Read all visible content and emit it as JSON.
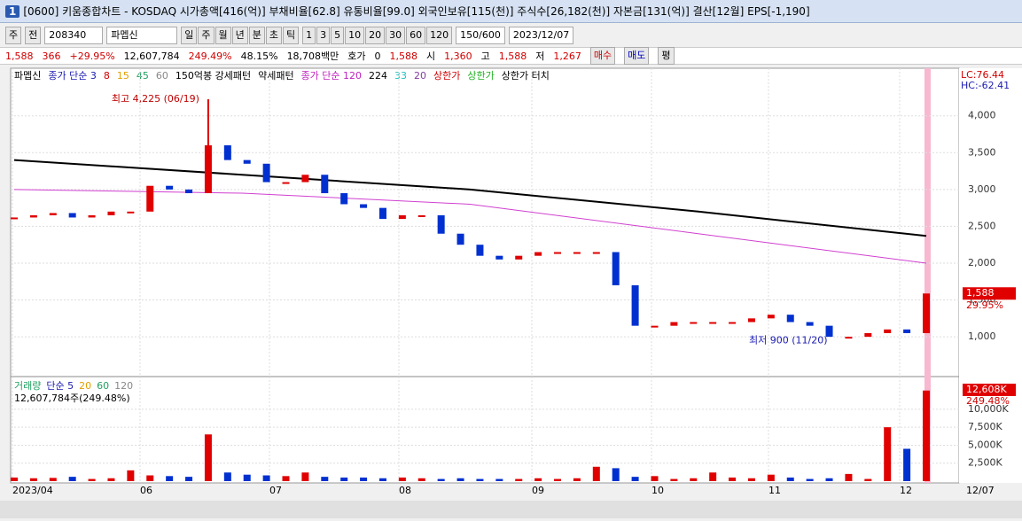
{
  "window": {
    "badge": "1",
    "title": "[0600] 키움종합차트 - KOSDAQ 시가총액[416(억)] 부채비율[62.8] 유통비율[99.0] 외국인보유[115(천)] 주식수[26,182(천)] 자본금[131(억)] 결산[12월] EPS[-1,190]"
  },
  "toolbar": {
    "period": "주",
    "mode": "전",
    "code": "208340",
    "name": "파멥신",
    "tabs": [
      "일",
      "주",
      "월",
      "년",
      "분",
      "초",
      "틱"
    ],
    "numbers": [
      "1",
      "3",
      "5",
      "10",
      "20",
      "30",
      "60",
      "120"
    ],
    "count": "150/600",
    "date": "2023/12/07"
  },
  "quote": {
    "price": "1,588",
    "change": "366",
    "change_pct": "+29.95%",
    "volume": "12,607,784",
    "volume_pct": "249.49%",
    "turnover": "48.15%",
    "amount": "18,708백만",
    "hoga_label": "호가",
    "hoga": "0",
    "hoga_price": "1,588",
    "open_label": "시",
    "open": "1,360",
    "high_label": "고",
    "high": "1,588",
    "low_label": "저",
    "low": "1,267",
    "buy": "매수",
    "sell": "매도",
    "avg": "평"
  },
  "price_chart": {
    "legend": [
      {
        "text": "파멥신",
        "color": "#000000"
      },
      {
        "text": "종가 단순 3",
        "color": "#1a1ab0"
      },
      {
        "text": "8",
        "color": "#d00000"
      },
      {
        "text": "15",
        "color": "#e0a000"
      },
      {
        "text": "45",
        "color": "#20a060"
      },
      {
        "text": "60",
        "color": "#888888"
      },
      {
        "text": "150억봉 강세패턴",
        "color": "#000000"
      },
      {
        "text": "약세패턴",
        "color": "#000000"
      },
      {
        "text": "종가 단순 120",
        "color": "#c020c0"
      },
      {
        "text": "224",
        "color": "#000000"
      },
      {
        "text": "33",
        "color": "#20c0c0"
      },
      {
        "text": "20",
        "color": "#8040a0"
      },
      {
        "text": "상한가",
        "color": "#d00000"
      },
      {
        "text": "상한가",
        "color": "#20b020"
      },
      {
        "text": "상한가 터치",
        "color": "#000000"
      }
    ],
    "lc": "LC:76.44",
    "hc": "HC:-62.41",
    "last_label": "1,588",
    "last_pct": "29.95%",
    "high_note": "최고 4,225 (06/19)",
    "high_value": 4225,
    "low_note": "최저 900 (11/20)",
    "ylim": [
      460,
      4430
    ],
    "yticks": [
      {
        "value": 1000,
        "label": "1,000"
      },
      {
        "value": 1500,
        "label": "1,500"
      },
      {
        "value": 2000,
        "label": "2,000"
      },
      {
        "value": 2500,
        "label": "2,500"
      },
      {
        "value": 3000,
        "label": "3,000"
      },
      {
        "value": 3500,
        "label": "3,500"
      },
      {
        "value": 4000,
        "label": "4,000"
      }
    ],
    "close": [
      2620,
      2650,
      2680,
      2620,
      2650,
      2700,
      2700,
      3050,
      3000,
      2950,
      3600,
      3400,
      3350,
      3100,
      3100,
      3200,
      2950,
      2800,
      2750,
      2600,
      2650,
      2650,
      2400,
      2250,
      2100,
      2050,
      2100,
      2150,
      2150,
      2150,
      2150,
      1700,
      1150,
      1150,
      1200,
      1200,
      1200,
      1200,
      1250,
      1300,
      1200,
      1150,
      1000,
      1000,
      1050,
      1100,
      1050,
      1588
    ],
    "ma224": [
      3400,
      3200,
      3000,
      2700,
      2370
    ],
    "ma120": [
      3000,
      2950,
      2800,
      2400,
      2000
    ]
  },
  "volume_chart": {
    "legend": [
      "거래량",
      "단순 5",
      "20",
      "60",
      "120"
    ],
    "summary": "12,607,784주(249.48%)",
    "last_label": "12,608K",
    "last_pct": "249.48%",
    "ylim": [
      0,
      12700
    ],
    "yticks": [
      {
        "value": 2500,
        "label": "2,500K"
      },
      {
        "value": 5000,
        "label": "5,000K"
      },
      {
        "value": 7500,
        "label": "7,500K"
      },
      {
        "value": 10000,
        "label": "10,000K"
      }
    ],
    "values": [
      500,
      400,
      450,
      600,
      300,
      400,
      1500,
      800,
      700,
      600,
      6500,
      1200,
      900,
      800,
      700,
      1200,
      600,
      500,
      500,
      400,
      500,
      400,
      300,
      400,
      300,
      300,
      300,
      400,
      300,
      400,
      2000,
      1800,
      600,
      700,
      300,
      400,
      1200,
      500,
      400,
      900,
      500,
      300,
      400,
      1000,
      300,
      7500,
      4500,
      12608
    ]
  },
  "x_labels": [
    "2023/04",
    "06",
    "07",
    "08",
    "09",
    "10",
    "11",
    "12",
    "12/07"
  ]
}
